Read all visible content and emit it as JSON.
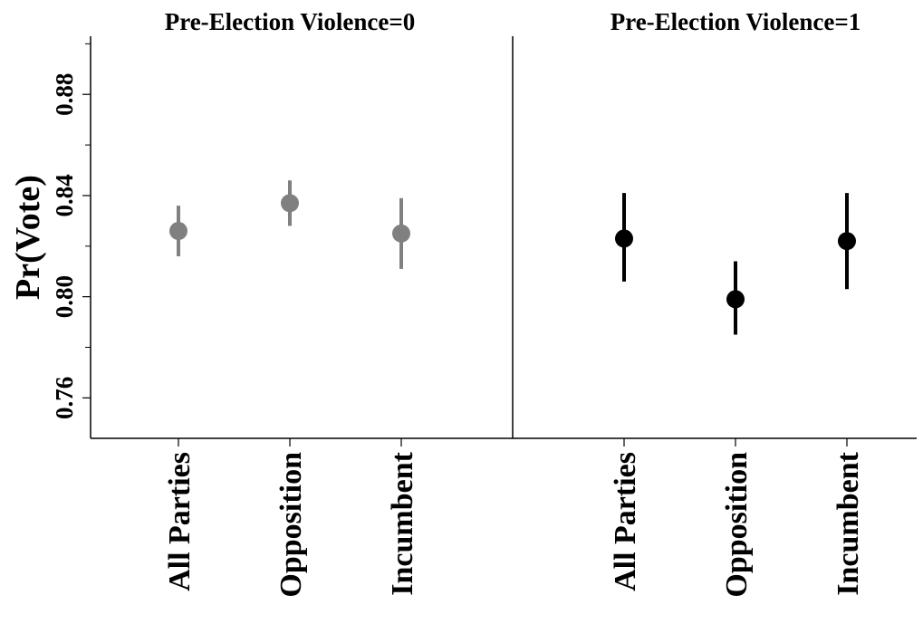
{
  "chart_data": {
    "type": "scatter",
    "ylabel": "Pr(Vote)",
    "ylim": [
      0.744,
      0.903
    ],
    "yticks": [
      0.76,
      0.8,
      0.84,
      0.88
    ],
    "ytick_labels": [
      "0.76",
      "0.80",
      "0.84",
      "0.88"
    ],
    "minor_ticks": true,
    "grid": false,
    "error_bars": true,
    "categories": [
      "All Parties",
      "Opposition",
      "Incumbent"
    ],
    "panels": [
      {
        "title": "Pre-Election Violence=0",
        "color": "#808080",
        "points": [
          {
            "category": "All Parties",
            "y": 0.826,
            "low": 0.816,
            "high": 0.836
          },
          {
            "category": "Opposition",
            "y": 0.837,
            "low": 0.828,
            "high": 0.846
          },
          {
            "category": "Incumbent",
            "y": 0.825,
            "low": 0.811,
            "high": 0.839
          }
        ]
      },
      {
        "title": "Pre-Election Violence=1",
        "color": "#000000",
        "points": [
          {
            "category": "All Parties",
            "y": 0.823,
            "low": 0.806,
            "high": 0.841
          },
          {
            "category": "Opposition",
            "y": 0.799,
            "low": 0.785,
            "high": 0.814
          },
          {
            "category": "Incumbent",
            "y": 0.822,
            "low": 0.803,
            "high": 0.841
          }
        ]
      }
    ]
  }
}
